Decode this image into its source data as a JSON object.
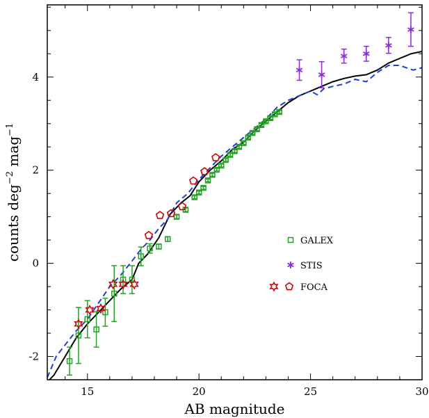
{
  "chart_data": {
    "type": "scatter",
    "xlabel": "AB magnitude",
    "ylabel_main": "counts deg",
    "ylabel_sup1": "−2",
    "ylabel_mid": " mag",
    "ylabel_sup2": "−1",
    "xlim": [
      13.2,
      30
    ],
    "ylim": [
      -2.5,
      5.55
    ],
    "x_ticks": [
      15,
      20,
      25,
      30
    ],
    "y_ticks": [
      -2,
      0,
      2,
      4
    ],
    "legend_position": "right-middle",
    "series": [
      {
        "name": "GALEX",
        "marker": "square",
        "color": "#1fa51f",
        "points": [
          {
            "x": 14.2,
            "y": -2.1,
            "err": 0.3
          },
          {
            "x": 14.6,
            "y": -1.55,
            "err": 0.6
          },
          {
            "x": 15.0,
            "y": -1.2,
            "err": 0.4
          },
          {
            "x": 15.4,
            "y": -1.42,
            "err": 0.38
          },
          {
            "x": 15.8,
            "y": -1.05,
            "err": 0.3
          },
          {
            "x": 16.2,
            "y": -0.65,
            "err": 0.6
          },
          {
            "x": 16.6,
            "y": -0.35,
            "err": 0.3
          },
          {
            "x": 17.0,
            "y": -0.35,
            "err": 0.3
          },
          {
            "x": 17.4,
            "y": 0.15,
            "err": 0.2
          },
          {
            "x": 17.8,
            "y": 0.32,
            "err": 0.1
          },
          {
            "x": 18.2,
            "y": 0.36,
            "err": 0.05
          },
          {
            "x": 18.6,
            "y": 0.52,
            "err": 0.05
          },
          {
            "x": 19.0,
            "y": 1.0,
            "err": 0.04
          },
          {
            "x": 19.4,
            "y": 1.15,
            "err": 0.04
          },
          {
            "x": 19.8,
            "y": 1.42,
            "err": 0.03
          },
          {
            "x": 20.0,
            "y": 1.52,
            "err": 0.03
          },
          {
            "x": 20.2,
            "y": 1.62,
            "err": 0.03
          },
          {
            "x": 20.4,
            "y": 1.78,
            "err": 0.03
          },
          {
            "x": 20.6,
            "y": 1.9,
            "err": 0.03
          },
          {
            "x": 20.8,
            "y": 2.01,
            "err": 0.03
          },
          {
            "x": 21.0,
            "y": 2.1,
            "err": 0.03
          },
          {
            "x": 21.2,
            "y": 2.22,
            "err": 0.03
          },
          {
            "x": 21.4,
            "y": 2.33,
            "err": 0.03
          },
          {
            "x": 21.6,
            "y": 2.41,
            "err": 0.03
          },
          {
            "x": 21.8,
            "y": 2.5,
            "err": 0.03
          },
          {
            "x": 22.0,
            "y": 2.58,
            "err": 0.03
          },
          {
            "x": 22.2,
            "y": 2.7,
            "err": 0.03
          },
          {
            "x": 22.4,
            "y": 2.8,
            "err": 0.03
          },
          {
            "x": 22.6,
            "y": 2.88,
            "err": 0.03
          },
          {
            "x": 22.8,
            "y": 2.97,
            "err": 0.03
          },
          {
            "x": 23.0,
            "y": 3.05,
            "err": 0.03
          },
          {
            "x": 23.2,
            "y": 3.12,
            "err": 0.03
          },
          {
            "x": 23.4,
            "y": 3.2,
            "err": 0.03
          },
          {
            "x": 23.6,
            "y": 3.25,
            "err": 0.03
          }
        ]
      },
      {
        "name": "STIS",
        "marker": "asterisk",
        "color": "#8a2be2",
        "points": [
          {
            "x": 24.5,
            "y": 4.15,
            "err": 0.22
          },
          {
            "x": 25.5,
            "y": 4.05,
            "err": 0.28
          },
          {
            "x": 26.5,
            "y": 4.45,
            "err": 0.15
          },
          {
            "x": 27.5,
            "y": 4.5,
            "err": 0.16
          },
          {
            "x": 28.5,
            "y": 4.68,
            "err": 0.17
          },
          {
            "x": 29.5,
            "y": 5.02,
            "err": 0.36
          }
        ]
      },
      {
        "name": "FOCA",
        "marker": "star-pentagon",
        "color": "#d40000",
        "points": [
          {
            "x": 14.6,
            "y": -1.3,
            "shape": "star"
          },
          {
            "x": 15.1,
            "y": -1.0,
            "shape": "star"
          },
          {
            "x": 15.6,
            "y": -0.97,
            "shape": "star"
          },
          {
            "x": 16.15,
            "y": -0.45,
            "shape": "star"
          },
          {
            "x": 16.6,
            "y": -0.45,
            "shape": "star"
          },
          {
            "x": 17.1,
            "y": -0.45,
            "shape": "star"
          },
          {
            "x": 17.75,
            "y": 0.6,
            "shape": "pentagon"
          },
          {
            "x": 18.25,
            "y": 1.03,
            "shape": "pentagon"
          },
          {
            "x": 18.75,
            "y": 1.07,
            "shape": "pentagon"
          },
          {
            "x": 19.25,
            "y": 1.22,
            "shape": "pentagon"
          },
          {
            "x": 19.75,
            "y": 1.77,
            "shape": "pentagon"
          },
          {
            "x": 20.25,
            "y": 1.97,
            "shape": "pentagon"
          },
          {
            "x": 20.75,
            "y": 2.27,
            "shape": "pentagon"
          }
        ]
      }
    ],
    "models": [
      {
        "style": "solid",
        "color": "#000000",
        "points": [
          [
            13.2,
            -2.55
          ],
          [
            13.5,
            -2.4
          ],
          [
            14.0,
            -2.0
          ],
          [
            14.5,
            -1.6
          ],
          [
            15.0,
            -1.3
          ],
          [
            15.5,
            -1.05
          ],
          [
            16.0,
            -0.8
          ],
          [
            16.5,
            -0.55
          ],
          [
            17.0,
            -0.35
          ],
          [
            17.3,
            0.0
          ],
          [
            17.7,
            0.2
          ],
          [
            18.2,
            0.55
          ],
          [
            18.7,
            1.05
          ],
          [
            19.2,
            1.3
          ],
          [
            19.6,
            1.45
          ],
          [
            20.0,
            1.75
          ],
          [
            20.5,
            2.0
          ],
          [
            21.0,
            2.2
          ],
          [
            21.5,
            2.45
          ],
          [
            22.0,
            2.6
          ],
          [
            22.5,
            2.85
          ],
          [
            23.0,
            3.05
          ],
          [
            23.5,
            3.25
          ],
          [
            24.0,
            3.45
          ],
          [
            24.5,
            3.6
          ],
          [
            25.0,
            3.7
          ],
          [
            25.5,
            3.8
          ],
          [
            26.0,
            3.9
          ],
          [
            26.5,
            3.97
          ],
          [
            27.0,
            4.02
          ],
          [
            27.5,
            4.05
          ],
          [
            28.0,
            4.15
          ],
          [
            28.5,
            4.3
          ],
          [
            29.0,
            4.4
          ],
          [
            29.5,
            4.5
          ],
          [
            30.0,
            4.55
          ]
        ]
      },
      {
        "style": "dashed",
        "color": "#1a3fe0",
        "points": [
          [
            13.2,
            -2.45
          ],
          [
            13.6,
            -2.0
          ],
          [
            14.0,
            -1.75
          ],
          [
            14.5,
            -1.45
          ],
          [
            15.0,
            -1.2
          ],
          [
            15.5,
            -0.85
          ],
          [
            16.0,
            -0.5
          ],
          [
            16.5,
            -0.25
          ],
          [
            17.0,
            0.05
          ],
          [
            17.4,
            0.3
          ],
          [
            17.8,
            0.5
          ],
          [
            18.2,
            0.75
          ],
          [
            18.6,
            0.95
          ],
          [
            19.0,
            1.3
          ],
          [
            19.5,
            1.5
          ],
          [
            20.0,
            1.8
          ],
          [
            20.5,
            2.05
          ],
          [
            21.0,
            2.3
          ],
          [
            21.5,
            2.5
          ],
          [
            22.0,
            2.7
          ],
          [
            22.5,
            2.9
          ],
          [
            23.0,
            3.1
          ],
          [
            23.5,
            3.35
          ],
          [
            24.0,
            3.5
          ],
          [
            24.5,
            3.6
          ],
          [
            25.0,
            3.7
          ],
          [
            25.3,
            3.62
          ],
          [
            25.6,
            3.75
          ],
          [
            26.0,
            3.8
          ],
          [
            26.5,
            3.85
          ],
          [
            27.0,
            3.95
          ],
          [
            27.5,
            3.9
          ],
          [
            28.0,
            4.1
          ],
          [
            28.5,
            4.25
          ],
          [
            29.0,
            4.25
          ],
          [
            29.3,
            4.2
          ],
          [
            29.6,
            4.15
          ],
          [
            30.0,
            4.2
          ]
        ]
      }
    ]
  }
}
